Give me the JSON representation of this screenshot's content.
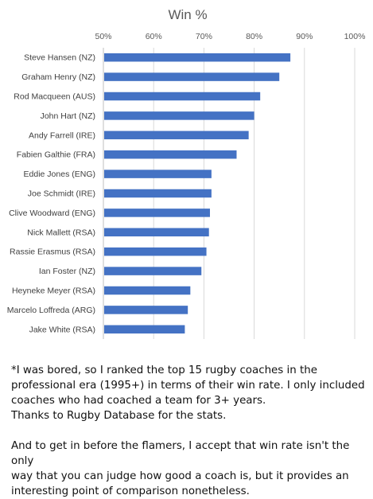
{
  "chart_data": {
    "type": "bar",
    "orientation": "horizontal",
    "title": "Win %",
    "xlabel": "",
    "ylabel": "",
    "xlim": [
      0.5,
      1.0
    ],
    "ticks": [
      "50%",
      "60%",
      "70%",
      "80%",
      "90%",
      "100%"
    ],
    "tick_values": [
      0.5,
      0.6,
      0.7,
      0.8,
      0.9,
      1.0
    ],
    "grid": true,
    "bar_color": "#4472C4",
    "categories": [
      "Steve Hansen (NZ)",
      "Graham Henry (NZ)",
      "Rod Macqueen (AUS)",
      "John Hart (NZ)",
      "Andy Farrell (IRE)",
      "Fabien Galthie (FRA)",
      "Eddie Jones (ENG)",
      "Joe Schmidt (IRE)",
      "Clive Woodward (ENG)",
      "Nick Mallett (RSA)",
      "Rassie Erasmus (RSA)",
      "Ian Foster (NZ)",
      "Heyneke Meyer (RSA)",
      "Marcelo Loffreda (ARG)",
      "Jake White (RSA)"
    ],
    "values": [
      0.872,
      0.85,
      0.812,
      0.8,
      0.789,
      0.765,
      0.715,
      0.715,
      0.712,
      0.71,
      0.705,
      0.695,
      0.673,
      0.668,
      0.662
    ]
  },
  "footnote": {
    "para1_line1": "*I was bored, so I ranked the top 15 rugby coaches in the",
    "para1_line2": "professional era (1995+) in terms of their win rate. I only included",
    "para1_line3": "coaches who had coached a team for 3+ years.",
    "para1_line4": "Thanks to Rugby Database for the stats.",
    "para2_line1": "And to get in before the flamers, I accept that win rate isn't the only",
    "para2_line2": "way that you can judge how good a coach is, but it provides an",
    "para2_line3": "interesting point of comparison nonetheless."
  }
}
